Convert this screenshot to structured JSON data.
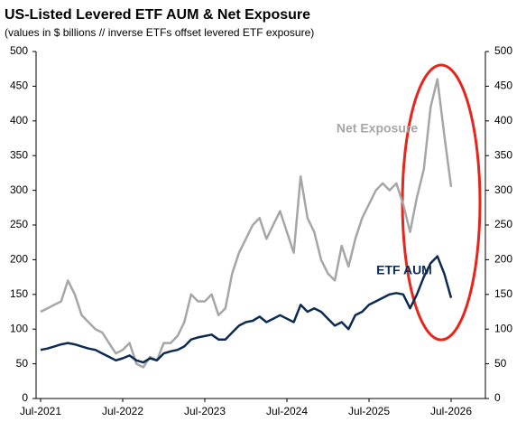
{
  "chart_data": {
    "type": "line",
    "title": "US-Listed Levered ETF AUM & Net Exposure",
    "subtitle": "(values in $ billions // inverse ETFs offset levered ETF exposure)",
    "categories": [
      "Jul-2021",
      null,
      null,
      null,
      null,
      null,
      null,
      null,
      null,
      null,
      null,
      null,
      "Jul-2022",
      null,
      null,
      null,
      null,
      null,
      null,
      null,
      null,
      null,
      null,
      null,
      "Jul-2023",
      null,
      null,
      null,
      null,
      null,
      null,
      null,
      null,
      null,
      null,
      null,
      "Jul-2024",
      null,
      null,
      null,
      null,
      null,
      null,
      null,
      null,
      null,
      null,
      null,
      "Jul-2025",
      null,
      null,
      null,
      null,
      null,
      null,
      null,
      null,
      null,
      null,
      null,
      "Jul-2026"
    ],
    "series": [
      {
        "name": "Net Exposure",
        "color": "#a6a6a6",
        "values": [
          125,
          130,
          135,
          140,
          170,
          150,
          120,
          110,
          100,
          95,
          80,
          65,
          70,
          80,
          50,
          45,
          60,
          55,
          80,
          80,
          90,
          110,
          150,
          140,
          140,
          150,
          120,
          130,
          180,
          210,
          230,
          250,
          260,
          230,
          250,
          270,
          240,
          210,
          320,
          260,
          240,
          200,
          180,
          170,
          220,
          190,
          230,
          260,
          280,
          300,
          310,
          300,
          310,
          280,
          240,
          290,
          330,
          420,
          460,
          380,
          305
        ]
      },
      {
        "name": "ETF AUM",
        "color": "#0d2b52",
        "values": [
          70,
          72,
          75,
          78,
          80,
          78,
          75,
          72,
          70,
          65,
          60,
          55,
          58,
          62,
          55,
          52,
          58,
          55,
          65,
          68,
          70,
          75,
          85,
          88,
          90,
          92,
          85,
          85,
          95,
          105,
          110,
          112,
          118,
          110,
          115,
          120,
          115,
          110,
          135,
          125,
          130,
          125,
          115,
          105,
          110,
          100,
          120,
          125,
          135,
          140,
          145,
          150,
          152,
          150,
          130,
          150,
          175,
          195,
          205,
          180,
          145
        ]
      }
    ],
    "ylim": [
      0,
      500
    ],
    "yticks": [
      0,
      50,
      100,
      150,
      200,
      250,
      300,
      350,
      400,
      450,
      500
    ],
    "y2lim": [
      0,
      500
    ],
    "y2ticks": [
      0,
      50,
      100,
      150,
      200,
      250,
      300,
      350,
      400,
      450,
      500
    ],
    "grid": false
  }
}
